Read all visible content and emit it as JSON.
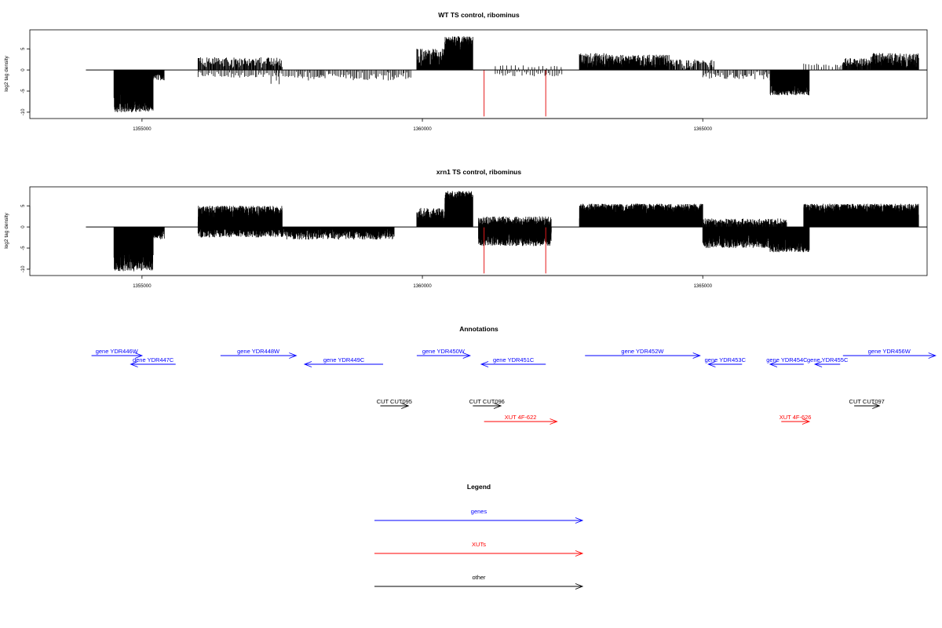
{
  "chart_data": [
    {
      "type": "bar",
      "title": "WT TS control, ribominus",
      "ylabel": "log2 tag density",
      "xlim": [
        1353000,
        1369000
      ],
      "ylim": [
        -11.5,
        9.5
      ],
      "x_ticks": [
        1355000,
        1360000,
        1365000
      ],
      "y_ticks": [
        -10,
        -5,
        0,
        5
      ],
      "baseline": [
        1354000,
        1369000
      ],
      "signal_color": "#000000",
      "highlight_color": "#e41a1c",
      "highlight_lines": [
        {
          "x": 1361100,
          "value": -11
        },
        {
          "x": 1362200,
          "value": -11
        }
      ],
      "regions": [
        {
          "start": 1354500,
          "end": 1355200,
          "level": -10,
          "min": 4,
          "dens": 7
        },
        {
          "start": 1355200,
          "end": 1355400,
          "level": -2.5,
          "min": 1,
          "dens": 2
        },
        {
          "start": 1356000,
          "end": 1357500,
          "level": 3,
          "min": 0.5,
          "dens": 1.2
        },
        {
          "start": 1356000,
          "end": 1357800,
          "level": -1.8,
          "min": 0.3,
          "dens": 0.5
        },
        {
          "start": 1357300,
          "end": 1357500,
          "level": -3.5,
          "min": 1.5,
          "dens": 0.2
        },
        {
          "start": 1357800,
          "end": 1359800,
          "level": -2.5,
          "min": 0.3,
          "dens": 0.6
        },
        {
          "start": 1359900,
          "end": 1360400,
          "level": 5,
          "min": 1,
          "dens": 1.8
        },
        {
          "start": 1360400,
          "end": 1360900,
          "level": 8,
          "min": 2.5,
          "dens": 8
        },
        {
          "start": 1361300,
          "end": 1362500,
          "level": -1.5,
          "min": 0.3,
          "dens": 0.4
        },
        {
          "start": 1361300,
          "end": 1362500,
          "level": 1.2,
          "min": 0.3,
          "dens": 0.2
        },
        {
          "start": 1362800,
          "end": 1363300,
          "level": 4,
          "min": 0.5,
          "dens": 2.5
        },
        {
          "start": 1363300,
          "end": 1364400,
          "level": 3.6,
          "min": 0.5,
          "dens": 3
        },
        {
          "start": 1364400,
          "end": 1365200,
          "level": 2.5,
          "min": 0.3,
          "dens": 1
        },
        {
          "start": 1365000,
          "end": 1366200,
          "level": -2.2,
          "min": 0.3,
          "dens": 0.6
        },
        {
          "start": 1366200,
          "end": 1366900,
          "level": -6,
          "min": 2,
          "dens": 7
        },
        {
          "start": 1366800,
          "end": 1367500,
          "level": 1.5,
          "min": 0.3,
          "dens": 0.3
        },
        {
          "start": 1367500,
          "end": 1368000,
          "level": 2.8,
          "min": 0.5,
          "dens": 1.5
        },
        {
          "start": 1368000,
          "end": 1368850,
          "level": 4,
          "min": 0.5,
          "dens": 3
        }
      ]
    },
    {
      "type": "bar",
      "title": "xrn1 TS control, ribominus",
      "ylabel": "log2 tag density",
      "xlim": [
        1353000,
        1369000
      ],
      "ylim": [
        -11.5,
        9.5
      ],
      "x_ticks": [
        1355000,
        1360000,
        1365000
      ],
      "y_ticks": [
        -10,
        -5,
        0,
        5
      ],
      "baseline": [
        1354000,
        1369000
      ],
      "signal_color": "#000000",
      "highlight_color": "#e41a1c",
      "highlight_lines": [
        {
          "x": 1361100,
          "value": -11
        },
        {
          "x": 1362200,
          "value": -11
        }
      ],
      "regions": [
        {
          "start": 1354500,
          "end": 1355200,
          "level": -10.5,
          "min": 4,
          "dens": 7
        },
        {
          "start": 1355200,
          "end": 1355400,
          "level": -3,
          "min": 1,
          "dens": 2
        },
        {
          "start": 1356000,
          "end": 1357500,
          "level": 5,
          "min": 1,
          "dens": 6
        },
        {
          "start": 1356000,
          "end": 1357500,
          "level": -2.5,
          "min": 0.5,
          "dens": 2
        },
        {
          "start": 1357500,
          "end": 1359500,
          "level": -3,
          "min": 0.5,
          "dens": 2.5
        },
        {
          "start": 1359900,
          "end": 1360400,
          "level": 4.5,
          "min": 1,
          "dens": 3
        },
        {
          "start": 1360400,
          "end": 1360900,
          "level": 8.5,
          "min": 3,
          "dens": 8
        },
        {
          "start": 1361000,
          "end": 1362300,
          "level": -4.5,
          "min": 1,
          "dens": 5
        },
        {
          "start": 1361000,
          "end": 1362300,
          "level": 2.5,
          "min": 0.5,
          "dens": 2
        },
        {
          "start": 1362800,
          "end": 1365000,
          "level": 5.5,
          "min": 1.5,
          "dens": 7
        },
        {
          "start": 1365000,
          "end": 1366200,
          "level": -5,
          "min": 1,
          "dens": 5
        },
        {
          "start": 1365000,
          "end": 1366500,
          "level": 2,
          "min": 0.5,
          "dens": 1.5
        },
        {
          "start": 1366200,
          "end": 1366900,
          "level": -6,
          "min": 2,
          "dens": 7
        },
        {
          "start": 1366800,
          "end": 1368850,
          "level": 5.5,
          "min": 1.5,
          "dens": 7
        }
      ]
    }
  ],
  "annotations": {
    "title": "Annotations",
    "xlim": [
      1353000,
      1369000
    ],
    "features": [
      {
        "label": "gene YDR446W",
        "kind": "gene",
        "strand": "+",
        "start": 1354100,
        "end": 1355000,
        "row": 0
      },
      {
        "label": "gene YDR447C",
        "kind": "gene",
        "strand": "-",
        "start": 1354800,
        "end": 1355600,
        "row": 1
      },
      {
        "label": "gene YDR448W",
        "kind": "gene",
        "strand": "+",
        "start": 1356400,
        "end": 1357750,
        "row": 0
      },
      {
        "label": "gene YDR449C",
        "kind": "gene",
        "strand": "-",
        "start": 1357900,
        "end": 1359300,
        "row": 1
      },
      {
        "label": "gene YDR450W",
        "kind": "gene",
        "strand": "+",
        "start": 1359900,
        "end": 1360850,
        "row": 0
      },
      {
        "label": "gene YDR451C",
        "kind": "gene",
        "strand": "-",
        "start": 1361050,
        "end": 1362200,
        "row": 1
      },
      {
        "label": "gene YDR452W",
        "kind": "gene",
        "strand": "+",
        "start": 1362900,
        "end": 1364950,
        "row": 0
      },
      {
        "label": "gene YDR453C",
        "kind": "gene",
        "strand": "-",
        "start": 1365100,
        "end": 1365700,
        "row": 1
      },
      {
        "label": "gene YDR454C",
        "kind": "gene",
        "strand": "-",
        "start": 1366200,
        "end": 1366800,
        "row": 1
      },
      {
        "label": "gene YDR455C",
        "kind": "gene",
        "strand": "-",
        "start": 1367000,
        "end": 1367450,
        "row": 1
      },
      {
        "label": "gene YDR456W",
        "kind": "gene",
        "strand": "+",
        "start": 1367500,
        "end": 1369150,
        "row": 0
      },
      {
        "label": "CUT CUT095",
        "kind": "other",
        "strand": "+",
        "start": 1359250,
        "end": 1359750,
        "row": 2
      },
      {
        "label": "CUT CUT096",
        "kind": "other",
        "strand": "+",
        "start": 1360900,
        "end": 1361400,
        "row": 2
      },
      {
        "label": "CUT CUT097",
        "kind": "other",
        "strand": "+",
        "start": 1367700,
        "end": 1368150,
        "row": 2
      },
      {
        "label": "XUT 4F-622",
        "kind": "xut",
        "strand": "+",
        "start": 1361100,
        "end": 1362400,
        "row": 3
      },
      {
        "label": "XUT 4F-626",
        "kind": "xut",
        "strand": "+",
        "start": 1366400,
        "end": 1366900,
        "row": 3
      }
    ]
  },
  "legend": {
    "title": "Legend",
    "items": [
      {
        "label": "genes",
        "color": "#0000ff"
      },
      {
        "label": "XUTs",
        "color": "#ff0000"
      },
      {
        "label": "other",
        "color": "#000000"
      }
    ]
  },
  "colors": {
    "gene": "#0000ff",
    "xut": "#ff0000",
    "other": "#000000",
    "frame": "#000000",
    "background": "#ffffff"
  }
}
